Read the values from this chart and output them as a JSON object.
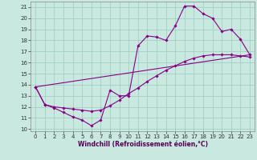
{
  "xlabel": "Windchill (Refroidissement éolien,°C)",
  "xlim": [
    -0.5,
    23.5
  ],
  "ylim": [
    9.8,
    21.5
  ],
  "xticks": [
    0,
    1,
    2,
    3,
    4,
    5,
    6,
    7,
    8,
    9,
    10,
    11,
    12,
    13,
    14,
    15,
    16,
    17,
    18,
    19,
    20,
    21,
    22,
    23
  ],
  "yticks": [
    10,
    11,
    12,
    13,
    14,
    15,
    16,
    17,
    18,
    19,
    20,
    21
  ],
  "bg_color": "#c8e8e0",
  "line_color": "#880088",
  "grid_color": "#99ccbb",
  "line1_x": [
    0,
    1,
    2,
    3,
    4,
    5,
    6,
    7,
    8,
    9,
    10,
    11,
    12,
    13,
    14,
    15,
    16,
    17,
    18,
    19,
    20,
    21,
    22,
    23
  ],
  "line1_y": [
    13.8,
    12.2,
    11.9,
    11.5,
    11.1,
    10.8,
    10.3,
    10.8,
    13.5,
    13.0,
    13.0,
    17.5,
    18.4,
    18.3,
    18.0,
    19.3,
    21.1,
    21.1,
    20.4,
    20.0,
    18.8,
    19.0,
    18.1,
    16.7
  ],
  "line2_x": [
    0,
    1,
    2,
    3,
    4,
    5,
    6,
    7,
    8,
    9,
    10,
    11,
    12,
    13,
    14,
    15,
    16,
    17,
    18,
    19,
    20,
    21,
    22,
    23
  ],
  "line2_y": [
    13.8,
    12.2,
    12.0,
    11.9,
    11.8,
    11.7,
    11.6,
    11.7,
    12.1,
    12.6,
    13.2,
    13.7,
    14.3,
    14.8,
    15.3,
    15.7,
    16.1,
    16.4,
    16.6,
    16.7,
    16.7,
    16.7,
    16.6,
    16.5
  ],
  "line3_x": [
    0,
    23
  ],
  "line3_y": [
    13.8,
    16.7
  ],
  "marker": "D",
  "markersize": 1.8,
  "linewidth": 0.8,
  "tick_fontsize": 5.0,
  "xlabel_fontsize": 5.5
}
